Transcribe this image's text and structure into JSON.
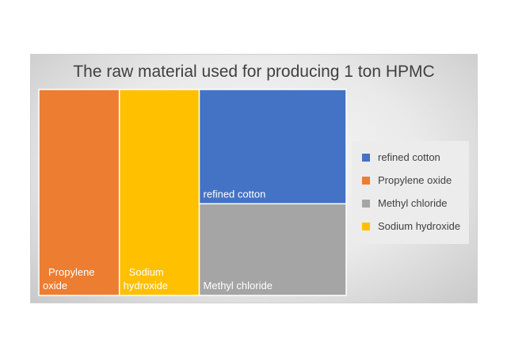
{
  "chart_data": {
    "type": "treemap",
    "title": "The raw material used for producing 1 ton HPMC",
    "categories": [
      "Propylene oxide",
      "Sodium hydroxide",
      "refined cotton",
      "Methyl chloride"
    ],
    "values": [
      25.0,
      24.8,
      25.3,
      20.3
    ],
    "data_labels": [
      "Propylene oxide",
      "Sodium hydroxide",
      "refined cotton",
      "Methyl chloride"
    ],
    "legend": {
      "position": "right",
      "entries": [
        "refined cotton",
        "Propylene oxide",
        "Methyl chloride",
        "Sodium hydroxide"
      ]
    },
    "colors": {
      "refined cotton": "#4472C4",
      "Propylene oxide": "#ED7D31",
      "Methyl chloride": "#A5A5A5",
      "Sodium hydroxide": "#FFC000"
    }
  }
}
